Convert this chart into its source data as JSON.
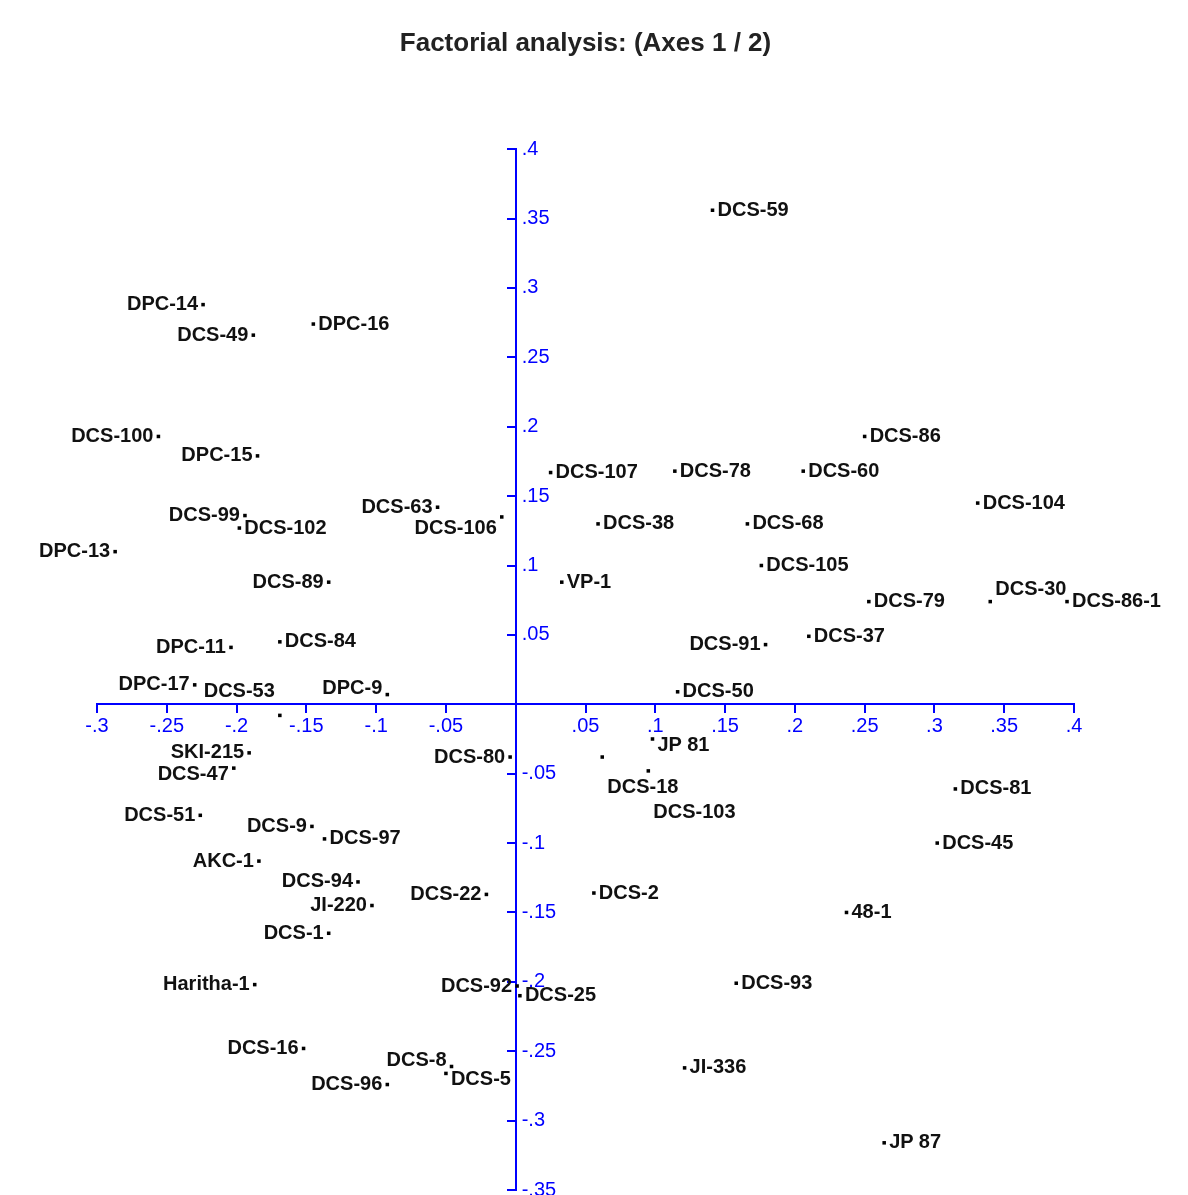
{
  "chart_data": {
    "type": "scatter",
    "title": "Factorial analysis: (Axes 1 / 2)",
    "marker": "square",
    "grid": false,
    "legend": false,
    "xlim": [
      -0.3,
      0.4
    ],
    "ylim": [
      -0.35,
      0.4
    ],
    "xticks": [
      {
        "value": -0.3,
        "label": "-.3"
      },
      {
        "value": -0.25,
        "label": "-.25"
      },
      {
        "value": -0.2,
        "label": "-.2"
      },
      {
        "value": -0.15,
        "label": "-.15"
      },
      {
        "value": -0.1,
        "label": "-.1"
      },
      {
        "value": -0.05,
        "label": "-.05"
      },
      {
        "value": 0,
        "label": null
      },
      {
        "value": 0.05,
        "label": ".05"
      },
      {
        "value": 0.1,
        "label": ".1"
      },
      {
        "value": 0.15,
        "label": ".15"
      },
      {
        "value": 0.2,
        "label": ".2"
      },
      {
        "value": 0.25,
        "label": ".25"
      },
      {
        "value": 0.3,
        "label": ".3"
      },
      {
        "value": 0.35,
        "label": ".35"
      },
      {
        "value": 0.4,
        "label": ".4"
      }
    ],
    "yticks": [
      {
        "value": -0.35,
        "label": "-.35"
      },
      {
        "value": -0.3,
        "label": "-.3"
      },
      {
        "value": -0.25,
        "label": "-.25"
      },
      {
        "value": -0.2,
        "label": "-.2"
      },
      {
        "value": -0.15,
        "label": "-.15"
      },
      {
        "value": -0.1,
        "label": "-.1"
      },
      {
        "value": -0.05,
        "label": "-.05"
      },
      {
        "value": 0,
        "label": null
      },
      {
        "value": 0.05,
        "label": ".05"
      },
      {
        "value": 0.1,
        "label": ".1"
      },
      {
        "value": 0.15,
        "label": ".15"
      },
      {
        "value": 0.2,
        "label": ".2"
      },
      {
        "value": 0.25,
        "label": ".25"
      },
      {
        "value": 0.3,
        "label": ".3"
      },
      {
        "value": 0.35,
        "label": ".35"
      },
      {
        "value": 0.4,
        "label": ".4"
      }
    ],
    "series": [
      {
        "color": "#000000",
        "x": [
          -0.224,
          -0.145,
          -0.188,
          -0.256,
          -0.185,
          -0.194,
          -0.198,
          -0.287,
          -0.056,
          -0.01,
          -0.134,
          -0.204,
          -0.169,
          -0.23,
          -0.092,
          -0.169,
          -0.191,
          -0.202,
          -0.004,
          -0.226,
          -0.146,
          -0.137,
          -0.184,
          -0.113,
          -0.103,
          -0.021,
          -0.134,
          -0.187,
          -0.152,
          -0.046,
          -0.05,
          -0.092,
          0.141,
          0.25,
          0.025,
          0.114,
          0.206,
          0.331,
          0.059,
          0.166,
          0.176,
          0.033,
          0.253,
          0.34,
          0.395,
          0.21,
          0.179,
          0.116,
          0.098,
          0.062,
          0.095,
          0.315,
          0.302,
          0.056,
          0.237,
          0.001,
          0.003,
          0.158,
          0.121,
          0.264
        ],
        "values": [
          0.288,
          0.274,
          0.266,
          0.193,
          0.179,
          0.136,
          0.127,
          0.11,
          0.142,
          0.135,
          0.088,
          0.041,
          0.045,
          0.014,
          0.007,
          -0.008,
          -0.035,
          -0.046,
          -0.038,
          -0.08,
          -0.088,
          -0.097,
          -0.113,
          -0.128,
          -0.145,
          -0.137,
          -0.165,
          -0.202,
          -0.248,
          -0.261,
          -0.266,
          -0.274,
          0.356,
          0.193,
          0.167,
          0.168,
          0.168,
          0.145,
          0.13,
          0.13,
          0.1,
          0.088,
          0.074,
          0.074,
          0.074,
          0.049,
          0.043,
          0.009,
          -0.025,
          -0.038,
          -0.048,
          -0.061,
          -0.1,
          -0.136,
          -0.15,
          -0.203,
          -0.21,
          -0.201,
          -0.262,
          -0.316
        ]
      }
    ],
    "annotations": [
      {
        "text": "DPC-14",
        "x": -0.224,
        "y": 0.288
      },
      {
        "text": "DPC-16",
        "x": -0.145,
        "y": 0.274
      },
      {
        "text": "DCS-49",
        "x": -0.188,
        "y": 0.266
      },
      {
        "text": "DCS-100",
        "x": -0.256,
        "y": 0.193
      },
      {
        "text": "DPC-15",
        "x": -0.185,
        "y": 0.179
      },
      {
        "text": "DCS-99",
        "x": -0.194,
        "y": 0.136
      },
      {
        "text": "DCS-102",
        "x": -0.198,
        "y": 0.127
      },
      {
        "text": "DPC-13",
        "x": -0.287,
        "y": 0.11
      },
      {
        "text": "DCS-63",
        "x": -0.056,
        "y": 0.142
      },
      {
        "text": "DCS-106",
        "x": -0.01,
        "y": 0.135
      },
      {
        "text": "DCS-89",
        "x": -0.134,
        "y": 0.088
      },
      {
        "text": "DPC-11",
        "x": -0.204,
        "y": 0.041
      },
      {
        "text": "DCS-84",
        "x": -0.169,
        "y": 0.045
      },
      {
        "text": "DPC-17",
        "x": -0.23,
        "y": 0.014
      },
      {
        "text": "DPC-9",
        "x": -0.092,
        "y": 0.007
      },
      {
        "text": "DCS-53",
        "x": -0.169,
        "y": -0.008
      },
      {
        "text": "SKI-215",
        "x": -0.191,
        "y": -0.035
      },
      {
        "text": "DCS-47",
        "x": -0.202,
        "y": -0.046
      },
      {
        "text": "DCS-80",
        "x": -0.004,
        "y": -0.038
      },
      {
        "text": "DCS-51",
        "x": -0.226,
        "y": -0.08
      },
      {
        "text": "DCS-9",
        "x": -0.146,
        "y": -0.088
      },
      {
        "text": "DCS-97",
        "x": -0.137,
        "y": -0.097
      },
      {
        "text": "AKC-1",
        "x": -0.184,
        "y": -0.113
      },
      {
        "text": "DCS-94",
        "x": -0.113,
        "y": -0.128
      },
      {
        "text": "JI-220",
        "x": -0.103,
        "y": -0.145
      },
      {
        "text": "DCS-22",
        "x": -0.021,
        "y": -0.137
      },
      {
        "text": "DCS-1",
        "x": -0.134,
        "y": -0.165
      },
      {
        "text": "Haritha-1",
        "x": -0.187,
        "y": -0.202
      },
      {
        "text": "DCS-16",
        "x": -0.152,
        "y": -0.248
      },
      {
        "text": "DCS-8",
        "x": -0.046,
        "y": -0.261
      },
      {
        "text": "DCS-5",
        "x": -0.05,
        "y": -0.266
      },
      {
        "text": "DCS-96",
        "x": -0.092,
        "y": -0.274
      },
      {
        "text": "DCS-59",
        "x": 0.141,
        "y": 0.356
      },
      {
        "text": "DCS-86",
        "x": 0.25,
        "y": 0.193
      },
      {
        "text": "DCS-107",
        "x": 0.025,
        "y": 0.167
      },
      {
        "text": "DCS-78",
        "x": 0.114,
        "y": 0.168
      },
      {
        "text": "DCS-60",
        "x": 0.206,
        "y": 0.168
      },
      {
        "text": "DCS-104",
        "x": 0.331,
        "y": 0.145
      },
      {
        "text": "DCS-38",
        "x": 0.059,
        "y": 0.13
      },
      {
        "text": "DCS-68",
        "x": 0.166,
        "y": 0.13
      },
      {
        "text": "DCS-105",
        "x": 0.176,
        "y": 0.1
      },
      {
        "text": "VP-1",
        "x": 0.033,
        "y": 0.088
      },
      {
        "text": "DCS-79",
        "x": 0.253,
        "y": 0.074
      },
      {
        "text": "DCS-30",
        "x": 0.34,
        "y": 0.074
      },
      {
        "text": "DCS-86-1",
        "x": 0.395,
        "y": 0.074
      },
      {
        "text": "DCS-37",
        "x": 0.21,
        "y": 0.049
      },
      {
        "text": "DCS-91",
        "x": 0.179,
        "y": 0.043
      },
      {
        "text": "DCS-50",
        "x": 0.116,
        "y": 0.009
      },
      {
        "text": "JP 81",
        "x": 0.098,
        "y": -0.025
      },
      {
        "text": "DCS-18",
        "x": 0.062,
        "y": -0.038
      },
      {
        "text": "DCS-103",
        "x": 0.095,
        "y": -0.048
      },
      {
        "text": "DCS-81",
        "x": 0.315,
        "y": -0.061
      },
      {
        "text": "DCS-45",
        "x": 0.302,
        "y": -0.1
      },
      {
        "text": "DCS-2",
        "x": 0.056,
        "y": -0.136
      },
      {
        "text": "48-1",
        "x": 0.237,
        "y": -0.15
      },
      {
        "text": "DCS-92",
        "x": 0.001,
        "y": -0.203
      },
      {
        "text": "DCS-25",
        "x": 0.003,
        "y": -0.21
      },
      {
        "text": "DCS-93",
        "x": 0.158,
        "y": -0.201
      },
      {
        "text": "JI-336",
        "x": 0.121,
        "y": -0.262
      },
      {
        "text": "JP 87",
        "x": 0.264,
        "y": -0.316
      }
    ]
  }
}
